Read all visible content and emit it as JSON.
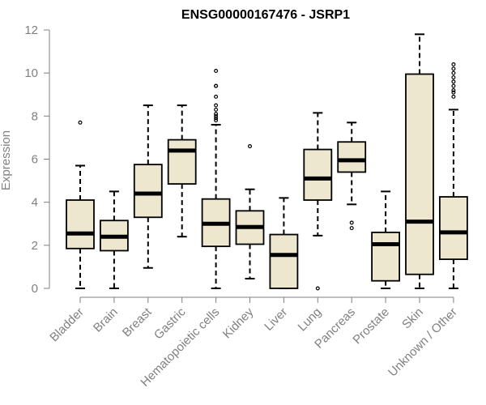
{
  "chart_data": {
    "type": "boxplot",
    "title": "ENSG00000167476 - JSRP1",
    "xlabel": "",
    "ylabel": "Expression",
    "ylim": [
      0,
      12
    ],
    "yticks": [
      0,
      2,
      4,
      6,
      8,
      10,
      12
    ],
    "grid": false,
    "colors": {
      "box_fill": "#ede7cf",
      "box_stroke": "#000000",
      "median": "#000000",
      "axis": "#808080",
      "title": "#000000"
    },
    "categories": [
      "Bladder",
      "Brain",
      "Breast",
      "Gastric",
      "Hematopoietic cells",
      "Kidney",
      "Liver",
      "Lung",
      "Pancreas",
      "Prostate",
      "Skin",
      "Unknown / Other"
    ],
    "boxes": [
      {
        "category": "Bladder",
        "whisker_low": 0.0,
        "q1": 1.85,
        "median": 2.55,
        "q3": 4.1,
        "whisker_high": 5.7,
        "outliers": [
          7.7
        ]
      },
      {
        "category": "Brain",
        "whisker_low": 0.0,
        "q1": 1.75,
        "median": 2.4,
        "q3": 3.15,
        "whisker_high": 4.5,
        "outliers": []
      },
      {
        "category": "Breast",
        "whisker_low": 0.95,
        "q1": 3.3,
        "median": 4.4,
        "q3": 5.75,
        "whisker_high": 8.5,
        "outliers": []
      },
      {
        "category": "Gastric",
        "whisker_low": 2.4,
        "q1": 4.85,
        "median": 6.4,
        "q3": 6.9,
        "whisker_high": 8.5,
        "outliers": []
      },
      {
        "category": "Hematopoietic cells",
        "whisker_low": 0.0,
        "q1": 1.95,
        "median": 3.0,
        "q3": 4.15,
        "whisker_high": 7.6,
        "outliers": [
          7.8,
          7.9,
          8.0,
          8.1,
          8.3,
          8.5,
          8.9,
          9.4,
          9.4,
          10.1
        ]
      },
      {
        "category": "Kidney",
        "whisker_low": 0.45,
        "q1": 2.05,
        "median": 2.85,
        "q3": 3.6,
        "whisker_high": 4.6,
        "outliers": [
          6.6
        ]
      },
      {
        "category": "Liver",
        "whisker_low": 0.0,
        "q1": 0.0,
        "median": 1.55,
        "q3": 2.5,
        "whisker_high": 4.2,
        "outliers": []
      },
      {
        "category": "Lung",
        "whisker_low": 2.45,
        "q1": 4.1,
        "median": 5.1,
        "q3": 6.45,
        "whisker_high": 8.15,
        "outliers": [
          0.0
        ]
      },
      {
        "category": "Pancreas",
        "whisker_low": 3.9,
        "q1": 5.4,
        "median": 5.95,
        "q3": 6.8,
        "whisker_high": 7.7,
        "outliers": [
          2.8,
          3.05
        ]
      },
      {
        "category": "Prostate",
        "whisker_low": 0.0,
        "q1": 0.35,
        "median": 2.05,
        "q3": 2.6,
        "whisker_high": 4.5,
        "outliers": []
      },
      {
        "category": "Skin",
        "whisker_low": 0.0,
        "q1": 0.65,
        "median": 3.1,
        "q3": 9.95,
        "whisker_high": 11.8,
        "outliers": []
      },
      {
        "category": "Unknown / Other",
        "whisker_low": 0.0,
        "q1": 1.35,
        "median": 2.6,
        "q3": 4.25,
        "whisker_high": 8.3,
        "outliers": [
          8.9,
          9.1,
          9.2,
          9.4,
          9.6,
          9.8,
          10.0,
          10.2,
          10.4
        ]
      }
    ]
  }
}
